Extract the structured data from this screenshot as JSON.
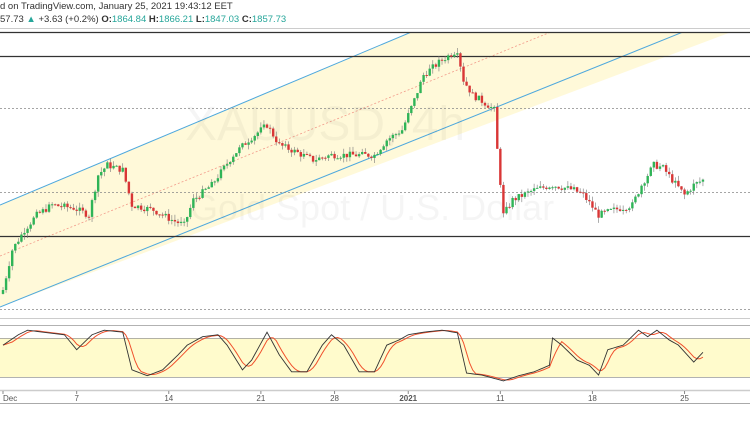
{
  "header": {
    "line1": "d on TradingView.com, January 25, 2021 19:43:12 EET",
    "last": "57.73",
    "change": "+3.63 (+0.2%)",
    "o_label": "O:",
    "o": "1864.84",
    "h_label": "H:",
    "h": "1866.21",
    "l_label": "L:",
    "l": "1847.03",
    "c_label": "C:",
    "c": "1857.73",
    "up_arrow": "▲"
  },
  "watermark": {
    "symbol": "XAUUSD, 4h",
    "description": "Gold Spot / U.S. Dollar"
  },
  "colors": {
    "up": "#2fb457",
    "down": "#d93636",
    "channel": "#4ea8dd",
    "channel_fill": "#fff9d9",
    "stoch_k": "#333333",
    "stoch_d": "#f0502c",
    "stoch_band": "#fffbcc"
  },
  "chart_data": {
    "type": "candlestick",
    "title": "XAUUSD, 4h",
    "xlabel": "",
    "ylabel": "",
    "ylim": [
      1768,
      1970
    ],
    "x_ticks": [
      {
        "label": "Dec",
        "bar": 0
      },
      {
        "label": "7",
        "bar": 24
      },
      {
        "label": "14",
        "bar": 54
      },
      {
        "label": "21",
        "bar": 84
      },
      {
        "label": "28",
        "bar": 108
      },
      {
        "label": "2021",
        "bar": 132
      },
      {
        "label": "11",
        "bar": 162
      },
      {
        "label": "18",
        "bar": 192
      },
      {
        "label": "25",
        "bar": 222
      }
    ],
    "bars_total": 229,
    "close_keypoints": {
      "bar": [
        0,
        3,
        7,
        11,
        16,
        23,
        28,
        31,
        34,
        39,
        42,
        49,
        55,
        59,
        62,
        68,
        75,
        80,
        86,
        90,
        94,
        101,
        107,
        114,
        121,
        125,
        130,
        134,
        137,
        143,
        148,
        150,
        153,
        158,
        160,
        161,
        163,
        166,
        173,
        179,
        186,
        189,
        194,
        199,
        205,
        208,
        212,
        215,
        218,
        222,
        225,
        228
      ],
      "close": [
        1775.3,
        1805.3,
        1820.3,
        1831.5,
        1839,
        1836.8,
        1831.5,
        1861.5,
        1869,
        1865.3,
        1839,
        1835.3,
        1827.8,
        1824,
        1842.8,
        1854,
        1876.5,
        1887.8,
        1899,
        1884,
        1880.3,
        1872.8,
        1876.5,
        1876.5,
        1876.5,
        1887.8,
        1895.3,
        1917.8,
        1936.5,
        1947.8,
        1955.3,
        1932.8,
        1921.5,
        1914,
        1910.3,
        1880.3,
        1831.5,
        1842.8,
        1850.3,
        1854,
        1850.3,
        1846.5,
        1831.5,
        1835.3,
        1839,
        1854,
        1869,
        1866.8,
        1857.8,
        1846.5,
        1854,
        1857.7
      ]
    },
    "horizontal_levels": [
      {
        "price": 1968.8,
        "style": "solid"
      },
      {
        "price": 1950.8,
        "style": "solid"
      },
      {
        "price": 1911.8,
        "style": "dashed"
      },
      {
        "price": 1848.8,
        "style": "dashed"
      },
      {
        "price": 1815.8,
        "style": "solid"
      },
      {
        "price": 1761,
        "style": "dashed"
      }
    ],
    "stochastic": {
      "levels": [
        80,
        20
      ],
      "k_keypoints": {
        "bar": [
          0,
          5,
          8,
          13,
          20,
          24,
          29,
          33,
          39,
          42,
          47,
          52,
          57,
          60,
          65,
          70,
          73,
          78,
          81,
          86,
          90,
          94,
          99,
          104,
          107,
          111,
          116,
          121,
          125,
          129,
          132,
          137,
          143,
          148,
          151,
          156,
          163,
          168,
          173,
          178,
          179,
          182,
          187,
          191,
          194,
          197,
          202,
          207,
          210,
          213,
          217,
          220,
          225,
          228
        ],
        "value": [
          69,
          85,
          92,
          89,
          85,
          62,
          85,
          92,
          89,
          31,
          22,
          31,
          54,
          69,
          82,
          85,
          69,
          31,
          46,
          89,
          54,
          28,
          28,
          69,
          85,
          69,
          28,
          28,
          69,
          77,
          85,
          89,
          92,
          88,
          26,
          23,
          14,
          22,
          28,
          38,
          80,
          69,
          46,
          38,
          23,
          62,
          69,
          92,
          82,
          92,
          77,
          69,
          43,
          58
        ]
      }
    }
  }
}
